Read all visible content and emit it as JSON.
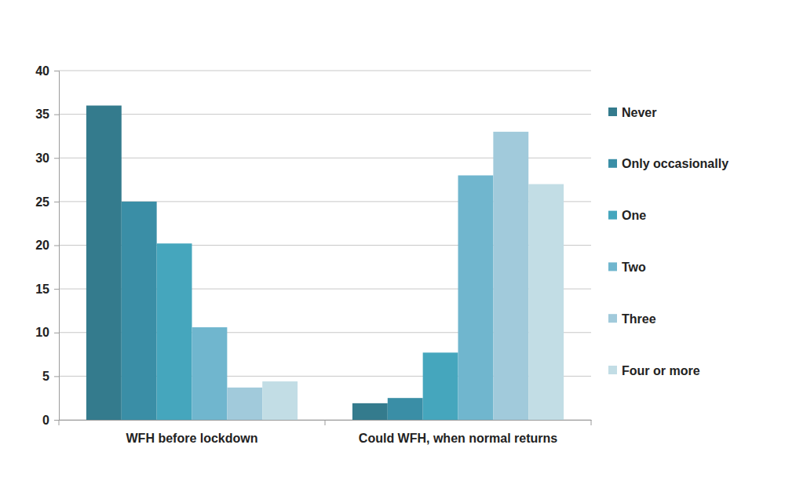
{
  "chart_data": {
    "type": "bar",
    "categories": [
      "WFH before lockdown",
      "Could WFH, when normal returns"
    ],
    "series": [
      {
        "name": "Never",
        "color": "#347b8d",
        "values": [
          36,
          1.9
        ]
      },
      {
        "name": "Only occasionally",
        "color": "#3a8ea6",
        "values": [
          25,
          2.5
        ]
      },
      {
        "name": "One",
        "color": "#45a6bd",
        "values": [
          20.2,
          7.7
        ]
      },
      {
        "name": "Two",
        "color": "#70b6ce",
        "values": [
          10.6,
          28
        ]
      },
      {
        "name": "Three",
        "color": "#a1cadb",
        "values": [
          3.7,
          33
        ]
      },
      {
        "name": "Four or more",
        "color": "#c2dde5",
        "values": [
          4.4,
          27
        ]
      }
    ],
    "ylim": [
      0,
      40
    ],
    "yticks": [
      0,
      5,
      10,
      15,
      20,
      25,
      30,
      35,
      40
    ],
    "grid": true,
    "legend": "right"
  }
}
